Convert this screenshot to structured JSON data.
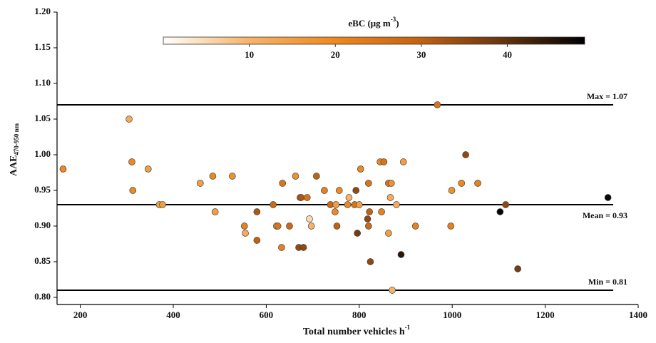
{
  "chart_data": {
    "type": "scatter",
    "x_label": "Total number vehicles h",
    "x_label_sup": "-1",
    "y_label": "AAE",
    "y_label_sub": "470-950 nm",
    "colorbar_label": "eBC (μg m",
    "colorbar_label_sup": "-3",
    "colorbar_label_end": ")",
    "clim": [
      0,
      49
    ],
    "cticks": [
      10,
      20,
      30,
      40
    ],
    "colormap": [
      "#ffffff",
      "#f7b46a",
      "#f08a20",
      "#c86410",
      "#6a3510",
      "#000000"
    ],
    "xlim": [
      150,
      1400
    ],
    "xticks": [
      200,
      400,
      600,
      800,
      1000,
      1200,
      1400
    ],
    "ylim": [
      0.79,
      1.2
    ],
    "yticks": [
      {
        "value": 0.8,
        "label": "0.80"
      },
      0.85,
      {
        "value": 0.9,
        "label": "0.90"
      },
      0.95,
      {
        "value": 1.0,
        "label": "1.00"
      },
      1.05,
      {
        "value": 1.1,
        "label": "1.10"
      },
      1.15,
      {
        "value": 1.2,
        "label": "1.20"
      }
    ],
    "reference_lines": [
      {
        "value": 1.07,
        "label": "Max = 1.07"
      },
      {
        "value": 0.93,
        "label": "Mean = 0.93"
      },
      {
        "value": 0.81,
        "label": "Min = 0.81"
      }
    ],
    "series": [
      {
        "x": [
          163,
          305,
          311,
          313,
          346,
          370,
          377,
          458,
          485,
          490,
          527,
          553,
          555,
          580,
          580,
          615,
          622,
          625,
          633,
          635,
          650,
          663,
          670,
          673,
          675,
          680,
          688,
          693,
          697,
          708,
          725,
          738,
          748,
          750,
          752,
          757,
          775,
          778,
          790,
          793,
          796,
          800,
          803,
          820,
          818,
          820,
          822,
          824,
          845,
          848,
          853,
          863,
          863,
          867,
          869,
          871,
          880,
          890,
          895,
          921,
          968,
          997,
          999,
          1020,
          1029,
          1055,
          1103,
          1115,
          1141,
          1335
        ],
        "values": [
          0.98,
          1.05,
          0.99,
          0.95,
          0.98,
          0.93,
          0.93,
          0.96,
          0.97,
          0.92,
          0.97,
          0.9,
          0.89,
          0.92,
          0.88,
          0.93,
          0.9,
          0.9,
          0.87,
          0.96,
          0.9,
          0.97,
          0.87,
          0.94,
          0.94,
          0.87,
          0.94,
          0.91,
          0.9,
          0.97,
          0.95,
          0.93,
          0.92,
          0.93,
          0.9,
          0.95,
          0.93,
          0.94,
          0.93,
          0.95,
          0.89,
          0.93,
          0.98,
          0.96,
          0.91,
          0.9,
          0.92,
          0.85,
          0.99,
          0.92,
          0.99,
          0.96,
          0.89,
          0.94,
          0.96,
          0.81,
          0.93,
          0.86,
          0.99,
          0.9,
          1.07,
          0.9,
          0.95,
          0.96,
          1.0,
          0.96,
          0.92,
          0.93,
          0.84,
          0.94
        ],
        "color_values": [
          20,
          12,
          20,
          20,
          15,
          15,
          15,
          15,
          20,
          15,
          18,
          22,
          12,
          32,
          30,
          28,
          15,
          25,
          22,
          25,
          28,
          18,
          35,
          30,
          32,
          35,
          25,
          5,
          10,
          30,
          22,
          28,
          20,
          15,
          30,
          20,
          20,
          10,
          25,
          35,
          38,
          15,
          20,
          25,
          35,
          28,
          30,
          35,
          20,
          22,
          25,
          25,
          15,
          12,
          18,
          10,
          12,
          45,
          15,
          22,
          25,
          22,
          18,
          20,
          35,
          22,
          48,
          35,
          38,
          48
        ]
      }
    ]
  }
}
